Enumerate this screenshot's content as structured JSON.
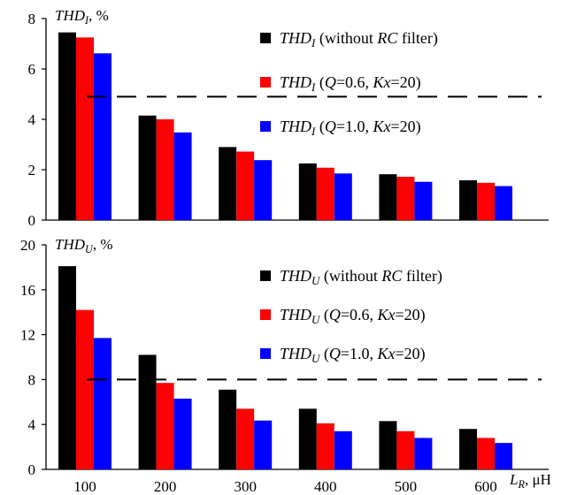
{
  "chart_data": [
    {
      "type": "bar",
      "ylabel": {
        "main": "THD",
        "sub": "I",
        "unit": ", %"
      },
      "categories": [
        "100",
        "200",
        "300",
        "400",
        "500",
        "600"
      ],
      "ylim": [
        0,
        8
      ],
      "yticks": [
        "0",
        "2",
        "4",
        "6",
        "8"
      ],
      "series": [
        {
          "name": "THD_I (without RC filter)",
          "color": "#000000",
          "values": [
            7.45,
            4.15,
            2.9,
            2.25,
            1.82,
            1.58
          ]
        },
        {
          "name": "THD_I (Q=0.6, Kx=20)",
          "color": "#ff0000",
          "values": [
            7.25,
            4.0,
            2.72,
            2.08,
            1.72,
            1.48
          ]
        },
        {
          "name": "THD_I (Q=1.0, Kx=20)",
          "color": "#0000ff",
          "values": [
            6.62,
            3.48,
            2.38,
            1.85,
            1.52,
            1.35
          ]
        }
      ],
      "legend": [
        {
          "prefix": "THD",
          "sub": "I",
          "rest": " (without RC filter)"
        },
        {
          "prefix": "THD",
          "sub": "I",
          "rest": " (Q=0.6, Kx=20)"
        },
        {
          "prefix": "THD",
          "sub": "I",
          "rest": " (Q=1.0, Kx=20)"
        }
      ],
      "limit_line": 4.9
    },
    {
      "type": "bar",
      "ylabel": {
        "main": "THD",
        "sub": "U",
        "unit": ", %"
      },
      "categories": [
        "100",
        "200",
        "300",
        "400",
        "500",
        "600"
      ],
      "ylim": [
        0,
        20
      ],
      "yticks": [
        "0",
        "4",
        "8",
        "12",
        "16",
        "20"
      ],
      "xlabel": {
        "main": "L",
        "sub": "R",
        "unit": ", μH"
      },
      "series": [
        {
          "name": "THD_U (without RC filter)",
          "color": "#000000",
          "values": [
            18.1,
            10.2,
            7.1,
            5.4,
            4.3,
            3.6
          ]
        },
        {
          "name": "THD_U (Q=0.6, Kx=20)",
          "color": "#ff0000",
          "values": [
            14.2,
            7.7,
            5.4,
            4.1,
            3.4,
            2.8
          ]
        },
        {
          "name": "THD_U (Q=1.0, Kx=20)",
          "color": "#0000ff",
          "values": [
            11.7,
            6.3,
            4.35,
            3.4,
            2.8,
            2.35
          ]
        }
      ],
      "legend": [
        {
          "prefix": "THD",
          "sub": "U",
          "rest": " (without RC filter)"
        },
        {
          "prefix": "THD",
          "sub": "U",
          "rest": " (Q=0.6, Kx=20)"
        },
        {
          "prefix": "THD",
          "sub": "U",
          "rest": " (Q=1.0, Kx=20)"
        }
      ],
      "limit_line": 8.0
    }
  ]
}
